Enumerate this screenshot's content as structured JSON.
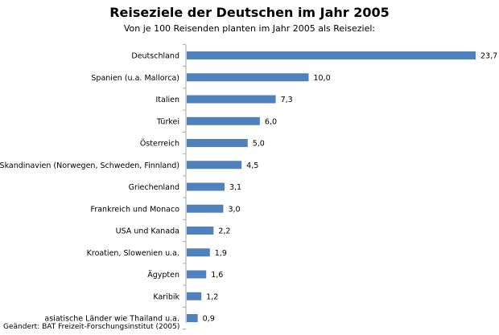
{
  "chart_data": {
    "type": "bar",
    "orientation": "horizontal",
    "title": "Reiseziele der Deutschen im Jahr 2005",
    "subtitle": "Von je 100 Reisenden planten im Jahr 2005 als Reiseziel:",
    "categories": [
      "Deutschland",
      "Spanien (u.a. Mallorca)",
      "Italien",
      "Türkei",
      "Österreich",
      "Skandinavien (Norwegen, Schweden, Finnland)",
      "Griechenland",
      "Frankreich und Monaco",
      "USA und Kanada",
      "Kroatien, Slowenien u.a.",
      "Ägypten",
      "Karibik",
      "asiatische Länder wie Thailand u.a."
    ],
    "values": [
      23.7,
      10.0,
      7.3,
      6.0,
      5.0,
      4.5,
      3.1,
      3.0,
      2.2,
      1.9,
      1.6,
      1.2,
      0.9
    ],
    "value_labels": [
      "23,7",
      "10,0",
      "7,3",
      "6,0",
      "5,0",
      "4,5",
      "3,1",
      "3,0",
      "2,2",
      "1,9",
      "1,6",
      "1,2",
      "0,9"
    ],
    "xlim": [
      0,
      23.7
    ],
    "bar_color": "#4f81bd",
    "axis_color": "#a6a6a6",
    "grid": false,
    "legend": "none",
    "source": "Geändert: BAT Freizeit-Forschungsinstitut (2005)"
  }
}
